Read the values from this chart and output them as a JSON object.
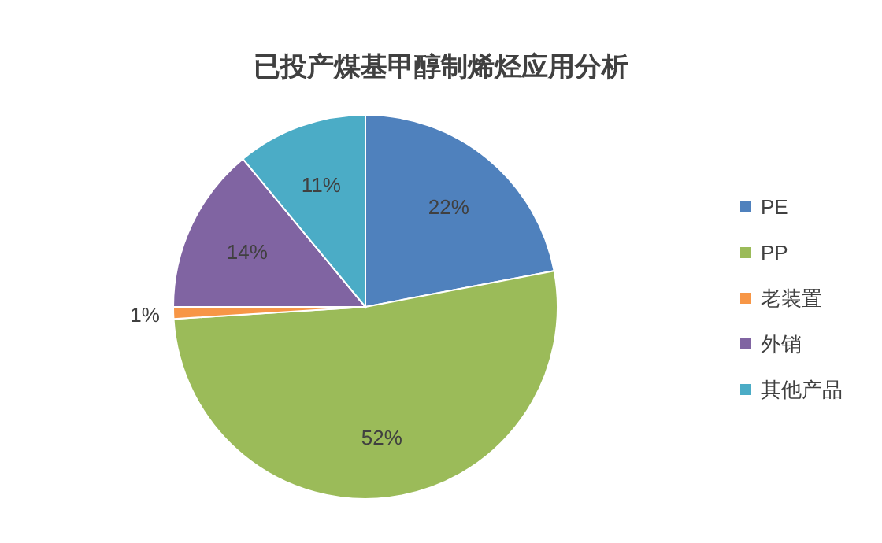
{
  "chart_data": {
    "type": "pie",
    "title": "已投产煤基甲醇制烯烃应用分析",
    "categories": [
      "PE",
      "PP",
      "老装置",
      "外销",
      "其他产品"
    ],
    "values": [
      22,
      52,
      1,
      14,
      11
    ],
    "colors": [
      "#4f81bd",
      "#9bbb59",
      "#f79646",
      "#8064a2",
      "#4bacc6"
    ],
    "value_labels": [
      "22%",
      "52%",
      "1%",
      "14%",
      "11%"
    ],
    "legend": "right"
  }
}
